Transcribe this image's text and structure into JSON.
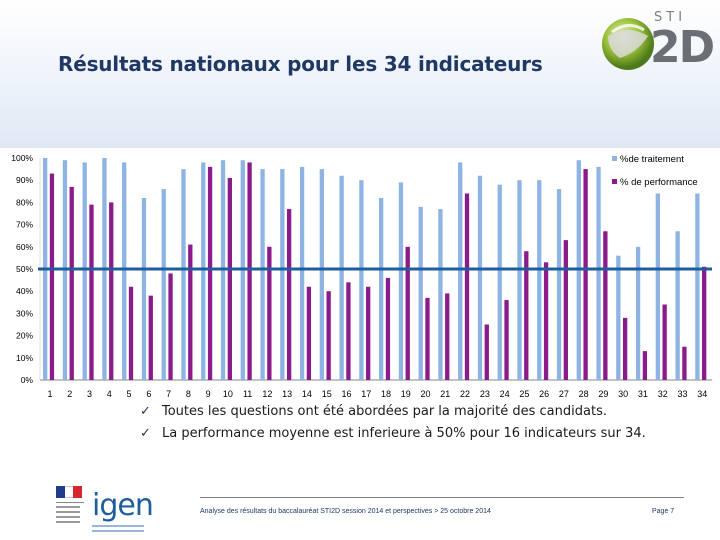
{
  "slide": {
    "title": "Résultats nationaux pour les 34 indicateurs",
    "logo_top": "STI",
    "logo_main": "2D"
  },
  "chart_data": {
    "type": "bar",
    "title": "",
    "categories": [
      "1",
      "2",
      "3",
      "4",
      "5",
      "6",
      "7",
      "8",
      "9",
      "10",
      "11",
      "12",
      "13",
      "14",
      "15",
      "16",
      "17",
      "18",
      "19",
      "20",
      "21",
      "22",
      "23",
      "24",
      "25",
      "26",
      "27",
      "28",
      "29",
      "30",
      "31",
      "32",
      "33",
      "34"
    ],
    "series": [
      {
        "name": "%de traitement",
        "color": "#8eb4e3",
        "values": [
          100,
          99,
          98,
          100,
          98,
          82,
          86,
          95,
          98,
          99,
          99,
          95,
          95,
          96,
          95,
          92,
          90,
          82,
          89,
          78,
          77,
          98,
          92,
          88,
          90,
          90,
          86,
          99,
          96,
          56,
          60,
          84,
          67,
          84
        ]
      },
      {
        "name": "% de performance",
        "color": "#8b1a8b",
        "values": [
          93,
          87,
          79,
          80,
          42,
          38,
          48,
          61,
          96,
          91,
          98,
          60,
          77,
          42,
          40,
          44,
          42,
          46,
          60,
          37,
          39,
          84,
          25,
          36,
          58,
          53,
          63,
          95,
          67,
          28,
          13,
          34,
          15,
          51
        ]
      }
    ],
    "reference_line": {
      "value": 50,
      "color": "#1f5d9c"
    },
    "y_ticks": [
      "0%",
      "10%",
      "20%",
      "30%",
      "40%",
      "50%",
      "60%",
      "70%",
      "80%",
      "90%",
      "100%"
    ],
    "ylim": [
      0,
      100
    ],
    "legend_position": "top-right",
    "xlabel": "",
    "ylabel": ""
  },
  "bullets": [
    "Toutes les questions ont été abordées par la majorité des candidats.",
    "La performance moyenne est inferieure à 50% pour 16 indicateurs sur 34."
  ],
  "footer": {
    "igen_logo": "igen",
    "text": "Analyse des résultats du baccalauréat STI2D session 2014 et perspectives > 25 octobre 2014",
    "page": "Page 7"
  },
  "colors": {
    "title": "#1f3864",
    "header_band": "#dfe8f4",
    "flag": [
      "#1f3d8c",
      "#ffffff",
      "#d7262f"
    ]
  }
}
